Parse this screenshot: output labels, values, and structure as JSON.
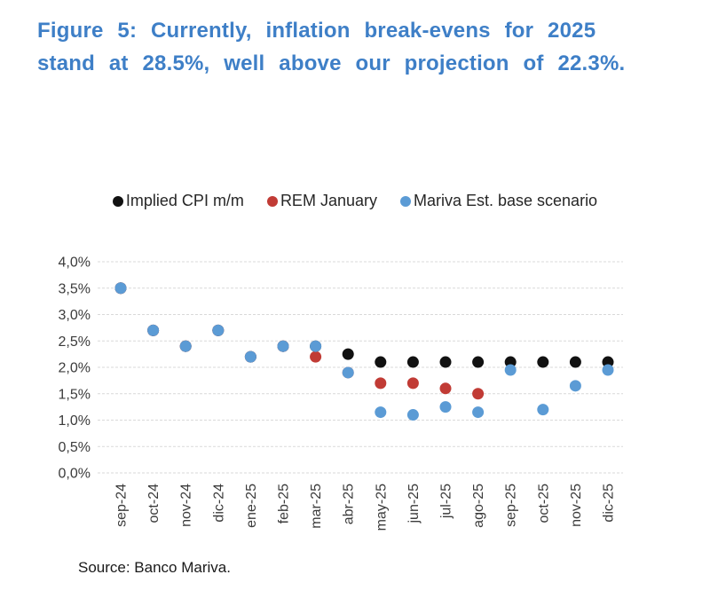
{
  "title": {
    "line1": "Figure 5: Currently, inflation break-evens for 2025",
    "line2": "stand at 28.5%, well above our projection of 22.3%."
  },
  "source": "Source: Banco Mariva.",
  "colors": {
    "title": "#3E7FC7",
    "axis_text": "#3B3B3B",
    "gridline": "#D9D9D9",
    "legend_text": "#262626"
  },
  "chart_data": {
    "type": "scatter",
    "title": "",
    "xlabel": "",
    "ylabel": "",
    "categories": [
      "sep-24",
      "oct-24",
      "nov-24",
      "dic-24",
      "ene-25",
      "feb-25",
      "mar-25",
      "abr-25",
      "may-25",
      "jun-25",
      "jul-25",
      "ago-25",
      "sep-25",
      "oct-25",
      "nov-25",
      "dic-25"
    ],
    "series": [
      {
        "name": "Implied CPI m/m",
        "color": "#111111",
        "values": [
          3.5,
          2.7,
          2.4,
          2.7,
          2.2,
          2.4,
          2.4,
          2.25,
          2.1,
          2.1,
          2.1,
          2.1,
          2.1,
          2.1,
          2.1,
          2.1
        ]
      },
      {
        "name": "REM January",
        "color": "#C13B35",
        "values": [
          3.5,
          2.7,
          2.4,
          2.7,
          2.2,
          2.4,
          2.2,
          1.9,
          1.7,
          1.7,
          1.6,
          1.5,
          null,
          null,
          null,
          null
        ]
      },
      {
        "name": "Mariva Est. base scenario",
        "color": "#5B9BD5",
        "values": [
          3.5,
          2.7,
          2.4,
          2.7,
          2.2,
          2.4,
          2.4,
          1.9,
          1.15,
          1.1,
          1.25,
          1.15,
          1.95,
          1.2,
          1.65,
          1.95
        ]
      }
    ],
    "ylim": [
      0,
      4
    ],
    "y_ticks": [
      {
        "value": 4.0,
        "label": "4,0%"
      },
      {
        "value": 3.5,
        "label": "3,5%"
      },
      {
        "value": 3.0,
        "label": "3,0%"
      },
      {
        "value": 2.5,
        "label": "2,5%"
      },
      {
        "value": 2.0,
        "label": "2,0%"
      },
      {
        "value": 1.5,
        "label": "1,5%"
      },
      {
        "value": 1.0,
        "label": "1,0%"
      },
      {
        "value": 0.5,
        "label": "0,5%"
      },
      {
        "value": 0.0,
        "label": "0,0%"
      }
    ],
    "grid": "horizontal-dashed",
    "legend_position": "top",
    "x_label_rotation": -90,
    "marker_radius": 6.5
  }
}
